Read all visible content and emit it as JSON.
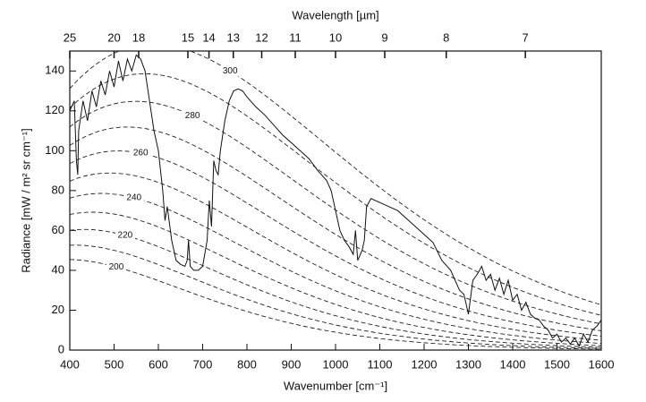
{
  "chart_data": {
    "type": "line",
    "xlabel": "Wavenumber [cm⁻¹]",
    "ylabel": "Radiance [mW / m² sr cm⁻¹]",
    "x2label": "Wavelength [µm]",
    "xlim": [
      400,
      1600
    ],
    "ylim": [
      0,
      150
    ],
    "xticks": [
      400,
      500,
      600,
      700,
      800,
      900,
      1000,
      1100,
      1200,
      1300,
      1400,
      1500,
      1600
    ],
    "yticks": [
      0,
      20,
      40,
      60,
      80,
      100,
      120,
      140
    ],
    "x2ticks": [
      25,
      20,
      18,
      15,
      14,
      13,
      12,
      11,
      10,
      9,
      8,
      7
    ],
    "series": [
      {
        "color": "#111111",
        "x": [
          400,
          410,
          415,
          418,
          420,
          430,
          440,
          450,
          460,
          470,
          480,
          490,
          500,
          510,
          520,
          530,
          540,
          550,
          560,
          570,
          580,
          590,
          600,
          610,
          615,
          620,
          630,
          640,
          650,
          660,
          665,
          668,
          672,
          680,
          690,
          700,
          710,
          715,
          720,
          725,
          730,
          735,
          740,
          750,
          760,
          770,
          780,
          790,
          800,
          820,
          840,
          860,
          880,
          900,
          920,
          940,
          960,
          980,
          990,
          1000,
          1010,
          1020,
          1030,
          1040,
          1045,
          1050,
          1060,
          1065,
          1070,
          1080,
          1100,
          1120,
          1140,
          1160,
          1180,
          1200,
          1220,
          1240,
          1260,
          1270,
          1280,
          1290,
          1300,
          1310,
          1320,
          1330,
          1340,
          1350,
          1360,
          1370,
          1380,
          1390,
          1400,
          1410,
          1420,
          1430,
          1440,
          1450,
          1460,
          1470,
          1480,
          1490,
          1500,
          1510,
          1520,
          1530,
          1540,
          1550,
          1560,
          1570,
          1580,
          1590,
          1600
        ],
        "values": [
          120,
          125,
          95,
          88,
          110,
          125,
          115,
          130,
          122,
          135,
          128,
          140,
          132,
          145,
          135,
          146,
          140,
          148,
          146,
          140,
          125,
          110,
          100,
          80,
          65,
          72,
          55,
          45,
          43,
          42,
          45,
          55,
          42,
          40,
          40,
          42,
          55,
          75,
          62,
          95,
          90,
          88,
          100,
          115,
          125,
          130,
          131,
          130,
          127,
          122,
          118,
          113,
          108,
          104,
          100,
          96,
          90,
          85,
          80,
          70,
          60,
          55,
          52,
          48,
          60,
          45,
          50,
          55,
          72,
          76,
          74,
          72,
          70,
          66,
          62,
          58,
          54,
          45,
          40,
          35,
          30,
          28,
          18,
          35,
          38,
          42,
          35,
          38,
          30,
          36,
          28,
          35,
          25,
          28,
          20,
          24,
          18,
          16,
          15,
          12,
          10,
          6,
          8,
          4,
          6,
          3,
          6,
          2,
          8,
          4,
          10,
          12,
          15
        ]
      }
    ],
    "reference_temperatures": [
      200,
      210,
      220,
      230,
      240,
      250,
      260,
      270,
      280,
      290,
      300
    ],
    "reference_labels": [
      200,
      220,
      240,
      260,
      280,
      300
    ]
  }
}
